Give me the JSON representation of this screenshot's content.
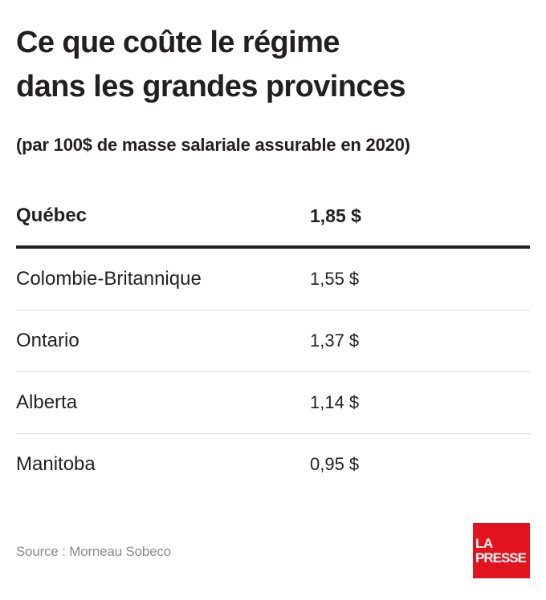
{
  "title_line1": "Ce que coûte le régime",
  "title_line2": "dans les grandes provinces",
  "subtitle": "(par 100$ de masse salariale assurable en 2020)",
  "chart_data": {
    "type": "table",
    "title": "Ce que coûte le régime dans les grandes provinces",
    "subtitle": "(par 100$ de masse salariale assurable en 2020)",
    "rows": [
      {
        "province": "Québec",
        "value": "1,85 $",
        "highlight": true
      },
      {
        "province": "Colombie-Britannique",
        "value": "1,55 $"
      },
      {
        "province": "Ontario",
        "value": "1,37 $"
      },
      {
        "province": "Alberta",
        "value": "1,14 $"
      },
      {
        "province": "Manitoba",
        "value": "0,95 $"
      }
    ],
    "values": [
      1.85,
      1.55,
      1.37,
      1.14,
      0.95
    ]
  },
  "source": "Source : Morneau Sobeco",
  "logo": {
    "line1": "LA",
    "line2": "PRESSE",
    "color": "#e3121f"
  },
  "colors": {
    "text": "#231f20",
    "rule": "#dcdcdc",
    "source": "#8b8b8b"
  }
}
